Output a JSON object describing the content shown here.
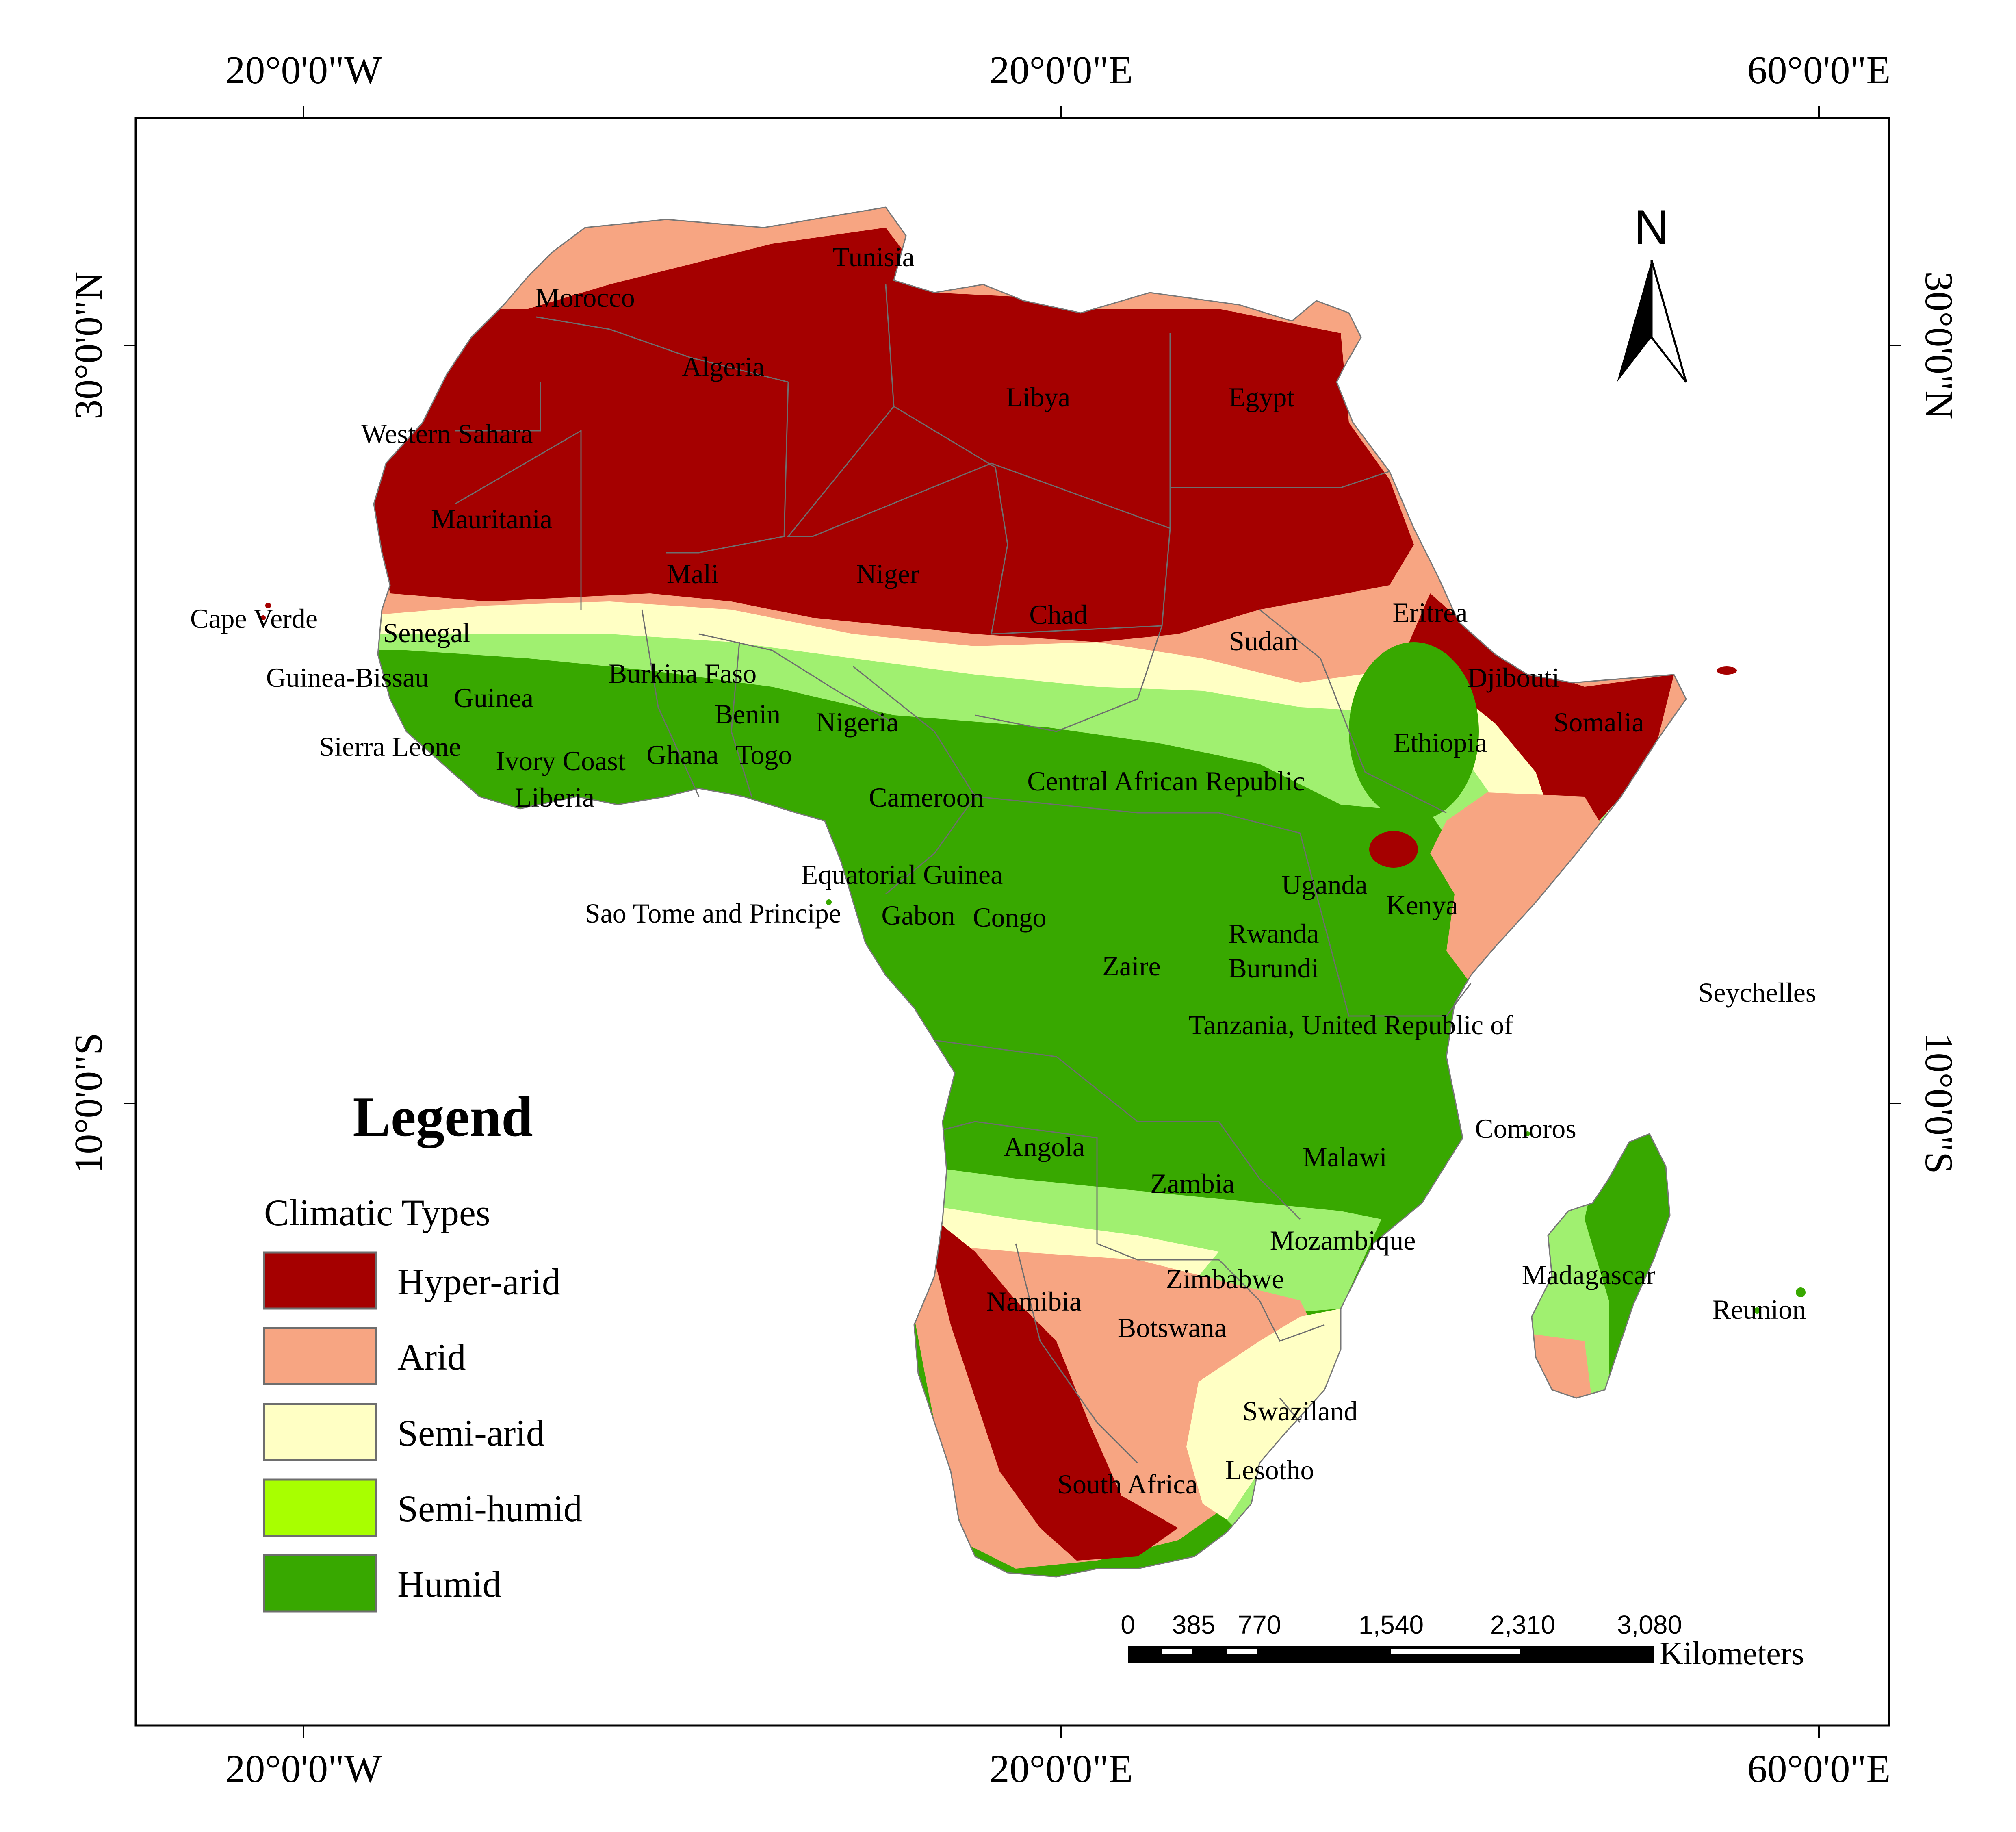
{
  "graticule": {
    "top": [
      "20°0'0\"W",
      "20°0'0\"E",
      "60°0'0\"E"
    ],
    "bottom": [
      "20°0'0\"W",
      "20°0'0\"E",
      "60°0'0\"E"
    ],
    "left": [
      "30°0'0\"N",
      "10°0'0\"S"
    ],
    "right": [
      "30°0'0\"N",
      "10°0'0\"S"
    ]
  },
  "north_arrow": {
    "label": "N"
  },
  "legend": {
    "title": "Legend",
    "subtitle": "Climatic Types",
    "items": [
      {
        "label": "Hyper-arid",
        "color": "#a50000"
      },
      {
        "label": "Arid",
        "color": "#f7a582"
      },
      {
        "label": "Semi-arid",
        "color": "#ffffc4"
      },
      {
        "label": "Semi-humid",
        "color": "#a8ff00"
      },
      {
        "label": "Humid",
        "color": "#38a800"
      }
    ]
  },
  "scale_bar": {
    "ticks": [
      "0",
      "385",
      "770",
      "1,540",
      "2,310",
      "3,080"
    ],
    "unit": "Kilometers"
  },
  "countries": [
    "Tunisia",
    "Morocco",
    "Algeria",
    "Libya",
    "Egypt",
    "Western Sahara",
    "Mauritania",
    "Mali",
    "Niger",
    "Chad",
    "Sudan",
    "Eritrea",
    "Cape Verde",
    "Senegal",
    "Djibouti",
    "Guinea-Bissau",
    "Burkina Faso",
    "Guinea",
    "Benin",
    "Nigeria",
    "Somalia",
    "Sierra Leone",
    "Ivory Coast",
    "Ghana",
    "Togo",
    "Ethiopia",
    "Liberia",
    "Cameroon",
    "Central African Republic",
    "Equatorial Guinea",
    "Uganda",
    "Kenya",
    "Sao Tome and Principe",
    "Gabon",
    "Congo",
    "Rwanda",
    "Burundi",
    "Zaire",
    "Seychelles",
    "Tanzania, United Republic of",
    "Comoros",
    "Angola",
    "Malawi",
    "Zambia",
    "Mozambique",
    "Zimbabwe",
    "Madagascar",
    "Namibia",
    "Reunion",
    "Botswana",
    "Swaziland",
    "Lesotho",
    "South Africa"
  ]
}
